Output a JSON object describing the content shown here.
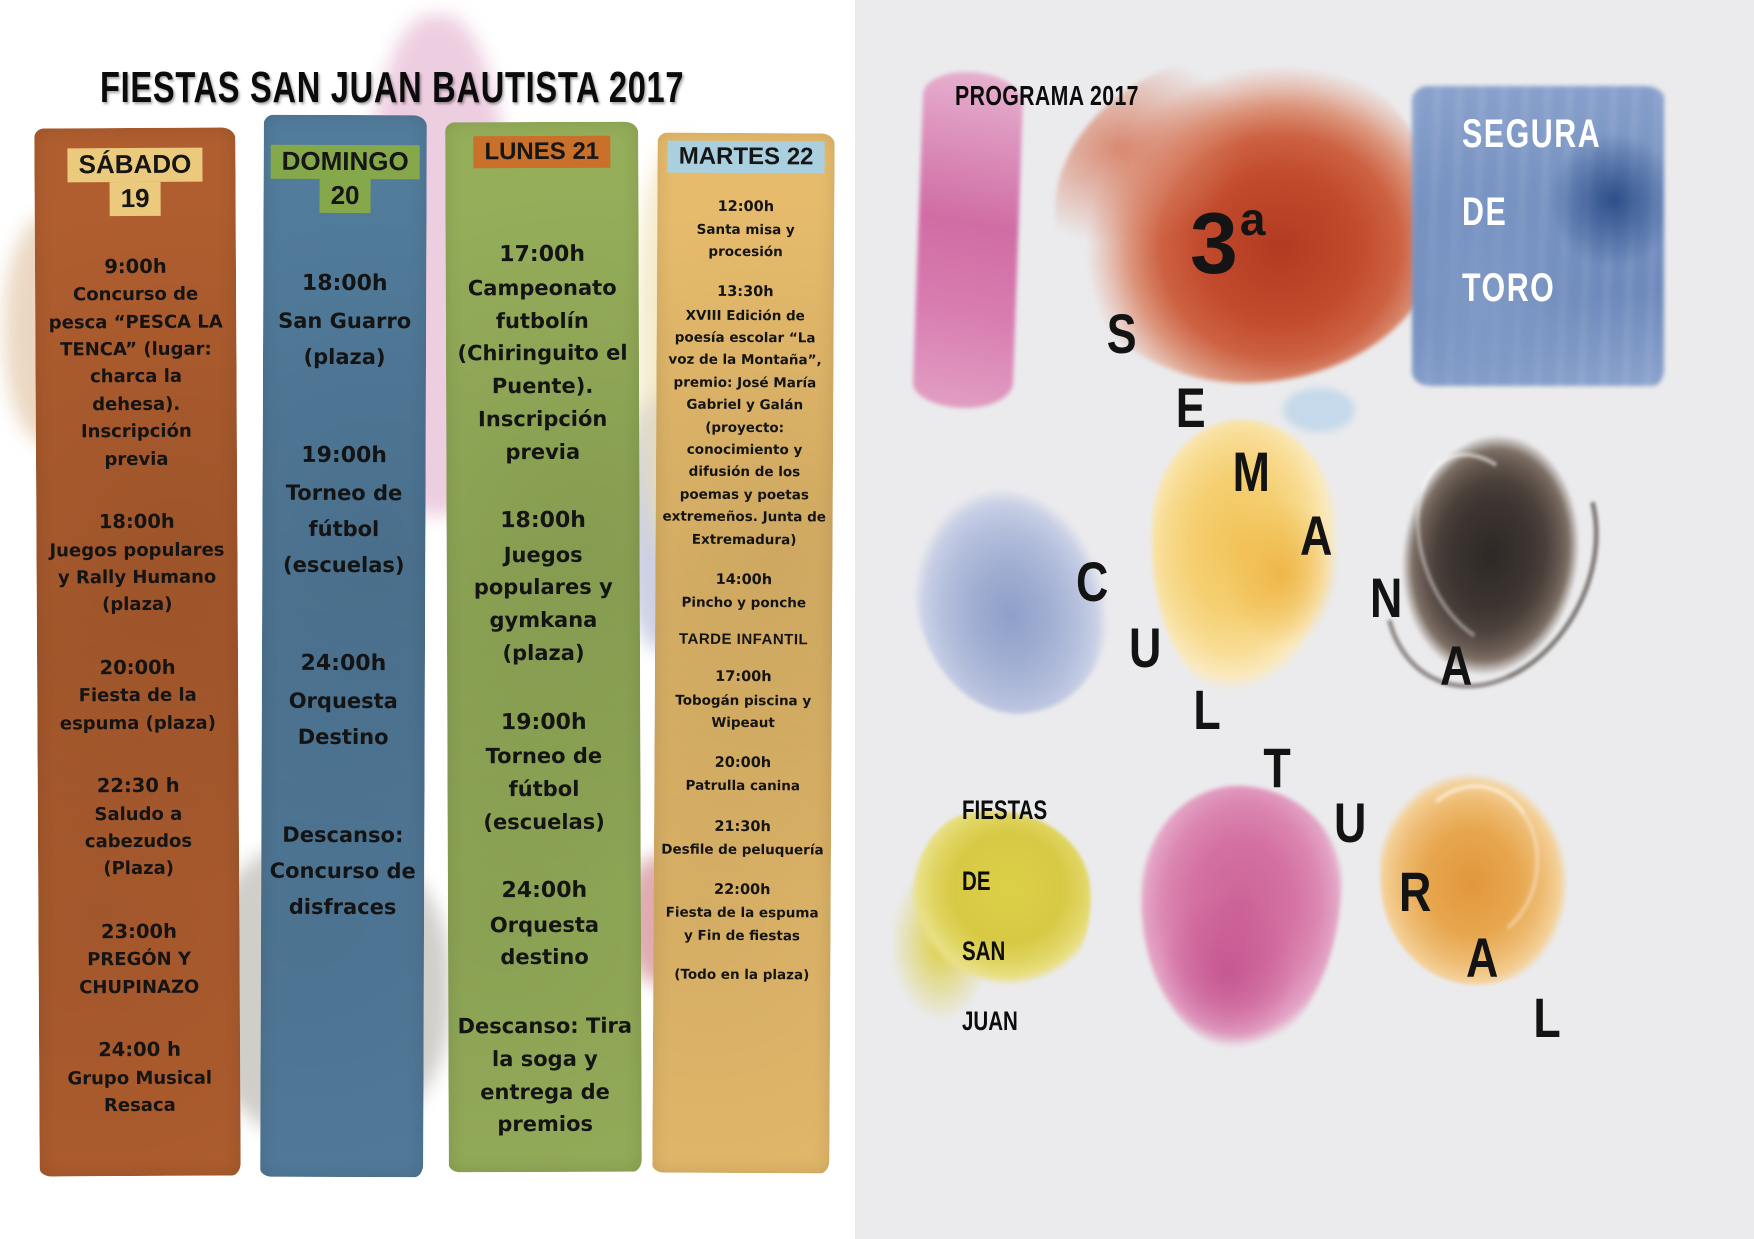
{
  "title": "FIESTAS SAN JUAN BAUTISTA 2017",
  "columns": [
    {
      "id": "sabado",
      "header_lines": [
        "SÁBADO",
        "19"
      ],
      "events": [
        {
          "time": "9:00h",
          "text": "Concurso de pesca “PESCA LA TENCA” (lugar: charca la dehesa). Inscripción previa"
        },
        {
          "time": "18:00h",
          "text": "Juegos populares y Rally Humano (plaza)"
        },
        {
          "time": "20:00h",
          "text": "Fiesta de la espuma (plaza)"
        },
        {
          "time": "22:30 h",
          "text": "Saludo a cabezudos (Plaza)"
        },
        {
          "time": "23:00h",
          "text": "PREGÓN Y CHUPINAZO"
        },
        {
          "time": "24:00 h",
          "text": "Grupo Musical Resaca"
        }
      ]
    },
    {
      "id": "domingo",
      "header_lines": [
        "DOMINGO",
        "20"
      ],
      "events": [
        {
          "time": "18:00h",
          "text": "San Guarro (plaza)"
        },
        {
          "time": "19:00h",
          "text": "Torneo de fútbol (escuelas)"
        },
        {
          "time": "24:00h",
          "text": "Orquesta Destino"
        },
        {
          "text": "Descanso: Concurso de disfraces"
        }
      ]
    },
    {
      "id": "lunes",
      "header_lines": [
        "LUNES 21"
      ],
      "events": [
        {
          "time": "17:00h",
          "text": "Campeonato futbolín (Chiringuito el Puente). Inscripción previa"
        },
        {
          "time": "18:00h",
          "text": "Juegos populares y gymkana (plaza)"
        },
        {
          "time": "19:00h",
          "text": "Torneo de fútbol (escuelas)"
        },
        {
          "time": "24:00h",
          "text": "Orquesta destino"
        },
        {
          "text": "Descanso: Tira la soga y entrega de premios"
        }
      ]
    },
    {
      "id": "martes",
      "header_lines": [
        "MARTES 22"
      ],
      "events": [
        {
          "time": "12:00h",
          "text": "Santa misa y procesión"
        },
        {
          "time": "13:30h",
          "text": "XVIII Edición de poesía escolar “La voz de la Montaña”, premio: José María Gabriel y Galán (proyecto: conocimiento y difusión de los poemas y poetas extremeños. Junta de Extremadura)"
        },
        {
          "time": "14:00h",
          "text": "Pincho y ponche"
        },
        {
          "heading": "TARDE INFANTIL"
        },
        {
          "time": "17:00h",
          "text": "Tobogán piscina y Wipeaut"
        },
        {
          "time": "20:00h",
          "text": "Patrulla canina"
        },
        {
          "time": "21:30h",
          "text": "Desfile de peluquería"
        },
        {
          "time": "22:00h",
          "text": "Fiesta de la espuma y Fin de fiestas"
        },
        {
          "text": "(Todo en la plaza)"
        }
      ]
    }
  ],
  "right_panel": {
    "program_label": "PROGRAMA 2017",
    "edition_number": "3",
    "edition_suffix": "a",
    "location_lines": [
      "SEGURA",
      "DE",
      "TORO"
    ],
    "semana_letters": [
      "S",
      "E",
      "M",
      "A",
      "N",
      "A"
    ],
    "cultural_letters": [
      "C",
      "U",
      "L",
      "T",
      "U",
      "R",
      "A",
      "L"
    ],
    "fiestas_lines": [
      "FIESTAS",
      "DE",
      "SAN",
      "JUAN"
    ]
  },
  "colors": {
    "column_sabado": "#b05e2f",
    "header_sabado": "#ecca7d",
    "column_domingo": "#527c9c",
    "header_domingo": "#85a84b",
    "column_lunes": "#95ae5a",
    "header_lunes": "#c9702a",
    "column_martes": "#e6bb6c",
    "header_martes": "#aad0e0",
    "panel_background": "#ebebed",
    "ink": "#141414",
    "location_text": "#ffffff"
  }
}
